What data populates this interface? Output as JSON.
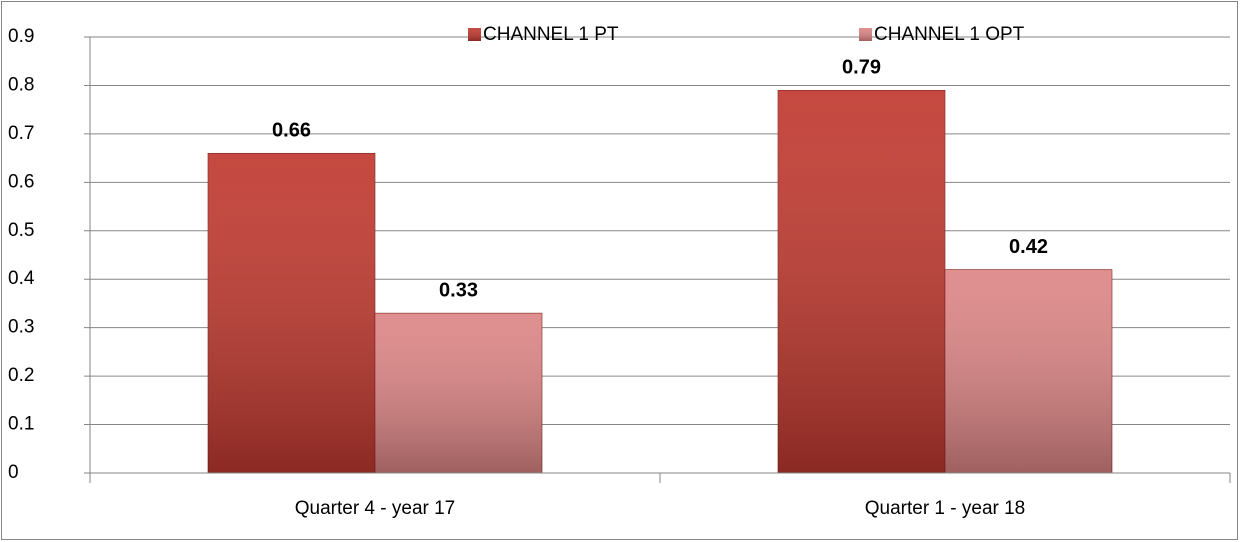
{
  "chart_data": {
    "type": "bar",
    "categories": [
      "Quarter 4 - year 17",
      "Quarter 1 - year 18"
    ],
    "series": [
      {
        "name": "CHANNEL 1 PT",
        "color": "#c0392f",
        "values": [
          0.66,
          0.79
        ]
      },
      {
        "name": "CHANNEL 1 OPT",
        "color": "#dd8585",
        "values": [
          0.33,
          0.42
        ]
      }
    ],
    "ylim": [
      0,
      0.9
    ],
    "yticks": [
      0,
      0.1,
      0.2,
      0.3,
      0.4,
      0.5,
      0.6,
      0.7,
      0.8,
      0.9
    ],
    "grid": true,
    "legend": "top"
  }
}
